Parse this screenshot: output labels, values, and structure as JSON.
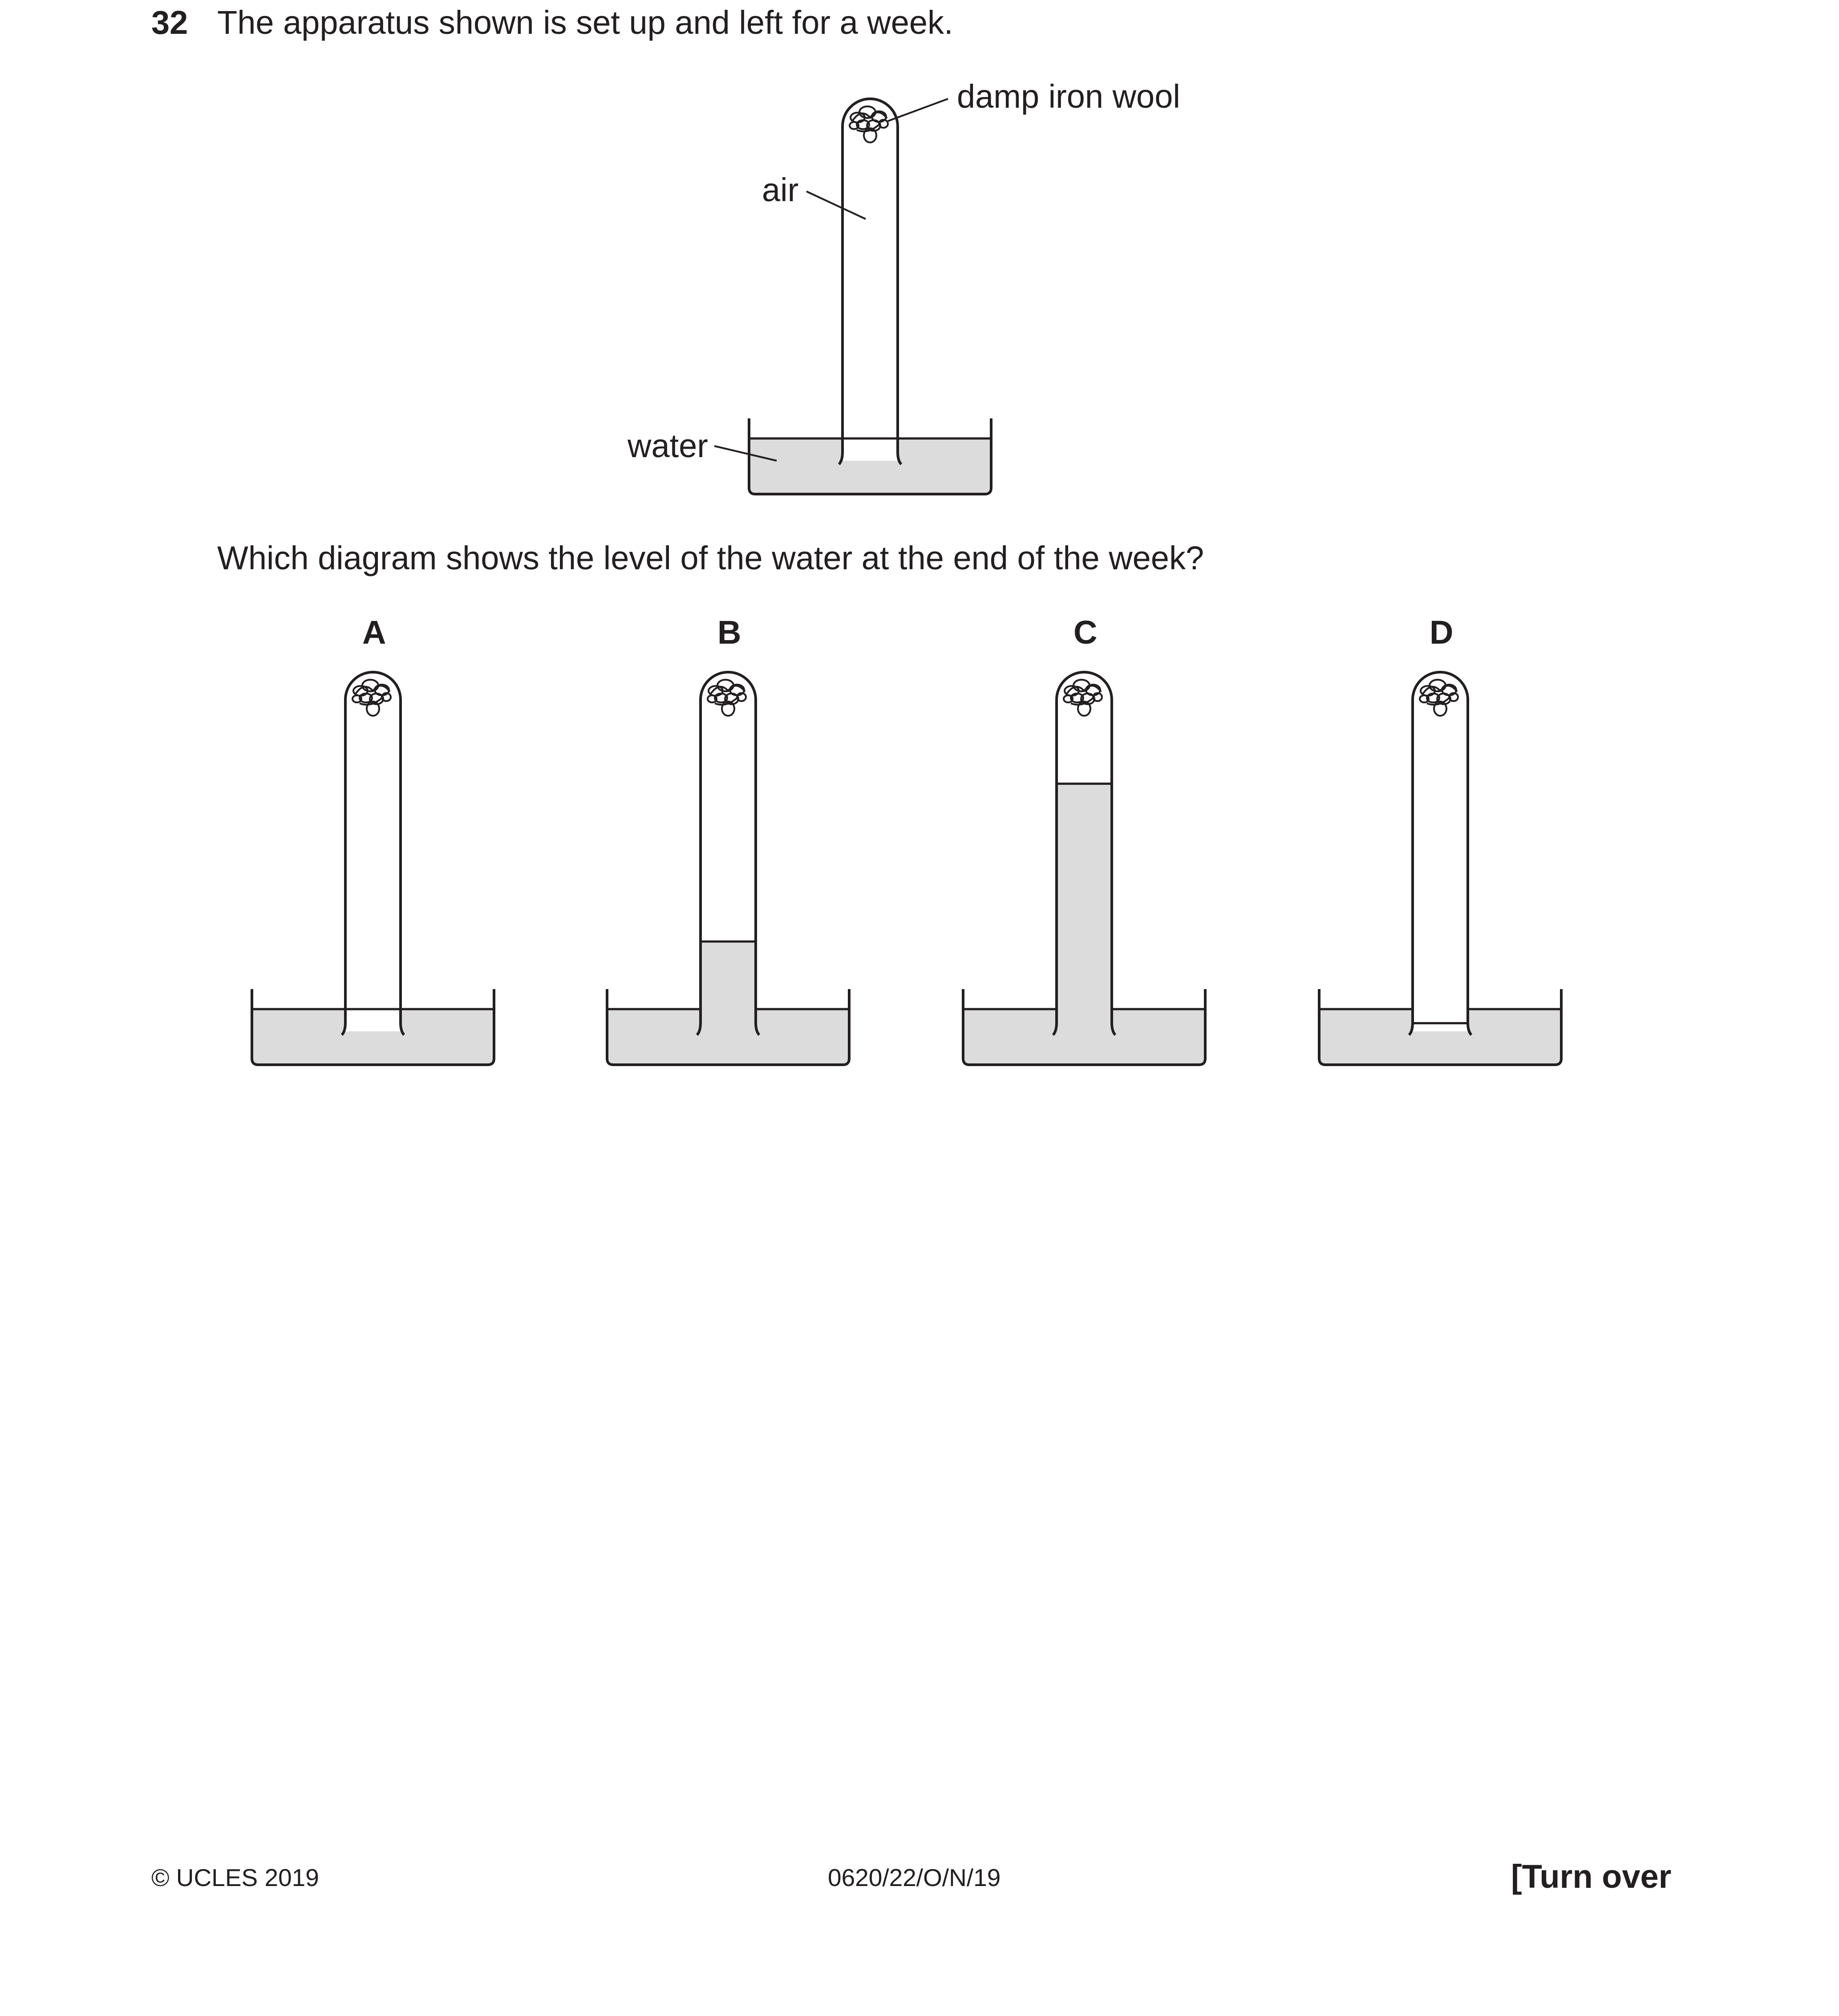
{
  "question": {
    "number": "32",
    "text": "The apparatus shown is set up and left for a week.",
    "prompt": "Which diagram shows the level of the water at the end of the week?"
  },
  "apparatus": {
    "labels": {
      "iron_wool": "damp iron wool",
      "air": "air",
      "water": "water"
    }
  },
  "options": [
    {
      "letter": "A",
      "tube_water_fraction": 0.0
    },
    {
      "letter": "B",
      "tube_water_fraction": 0.24
    },
    {
      "letter": "C",
      "tube_water_fraction": 0.8
    },
    {
      "letter": "D",
      "tube_water_fraction": -0.05
    }
  ],
  "colors": {
    "water": "#dcdcdc",
    "ink": "#231f20"
  },
  "footer": {
    "copyright": "© UCLES 2019",
    "code": "0620/22/O/N/19",
    "turn_over": "[Turn over"
  }
}
